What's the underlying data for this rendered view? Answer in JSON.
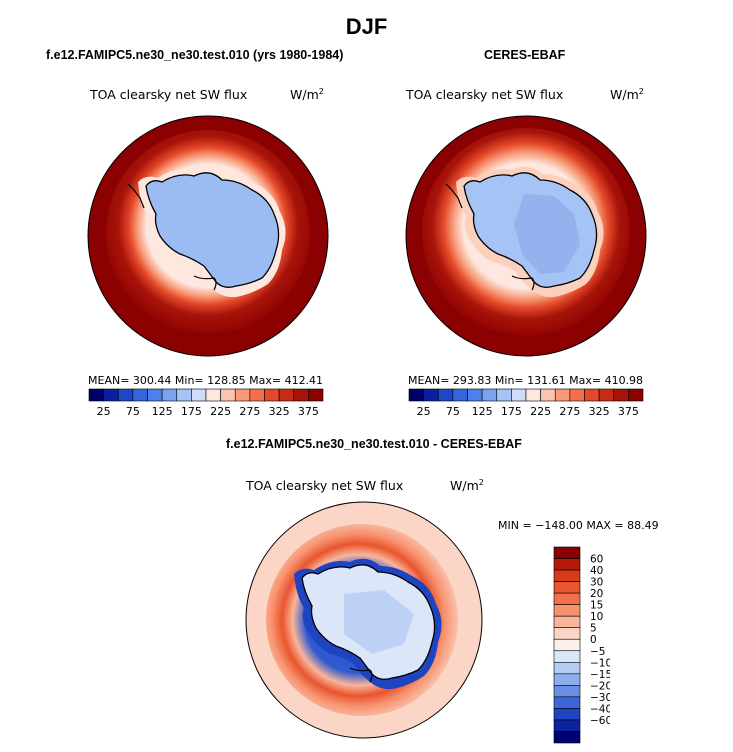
{
  "title": "DJF",
  "panels": [
    {
      "subtitle": "f.e12.FAMIPC5.ne30_ne30.test.010 (yrs 1980-1984)",
      "variable": "TOA clearsky net SW flux",
      "units": "W/m",
      "units_power": "2",
      "stats": "MEAN= 300.44   Min= 128.85   Max= 412.41"
    },
    {
      "subtitle": "CERES-EBAF",
      "variable": "TOA clearsky net SW flux",
      "units": "W/m",
      "units_power": "2",
      "stats": "MEAN= 293.83   Min= 131.61   Max= 410.98"
    },
    {
      "subtitle": "f.e12.FAMIPC5.ne30_ne30.test.010 - CERES-EBAF",
      "variable": "TOA clearsky net SW flux",
      "units": "W/m",
      "units_power": "2",
      "stats": "MIN = −148.00  MAX =   88.49"
    }
  ],
  "chart_data": [
    {
      "type": "heatmap",
      "projection": "south-polar-stereographic",
      "colorbar": {
        "orientation": "horizontal",
        "tick_labels": [
          "25",
          "75",
          "125",
          "175",
          "225",
          "275",
          "325",
          "375"
        ],
        "colors": [
          "#000064",
          "#0a1fa0",
          "#1d46c8",
          "#3366dd",
          "#4e80ea",
          "#7aa3f0",
          "#a6c3f5",
          "#cfdcf9",
          "#fde7de",
          "#fbc4ad",
          "#f89a78",
          "#f2704a",
          "#e44a2a",
          "#c82a14",
          "#a8140a",
          "#8b0000"
        ]
      },
      "antarctica_value_range": [
        128.85,
        175
      ],
      "ocean_max": 412.41,
      "mean": 300.44,
      "min": 128.85,
      "max": 412.41
    },
    {
      "type": "heatmap",
      "projection": "south-polar-stereographic",
      "colorbar": {
        "orientation": "horizontal",
        "tick_labels": [
          "25",
          "75",
          "125",
          "175",
          "225",
          "275",
          "325",
          "375"
        ],
        "colors": [
          "#000064",
          "#0a1fa0",
          "#1d46c8",
          "#3366dd",
          "#4e80ea",
          "#7aa3f0",
          "#a6c3f5",
          "#cfdcf9",
          "#fde7de",
          "#fbc4ad",
          "#f89a78",
          "#f2704a",
          "#e44a2a",
          "#c82a14",
          "#a8140a",
          "#8b0000"
        ]
      },
      "mean": 293.83,
      "min": 131.61,
      "max": 410.98
    },
    {
      "type": "heatmap",
      "projection": "south-polar-stereographic",
      "colorbar": {
        "orientation": "vertical",
        "tick_labels": [
          "60",
          "40",
          "30",
          "20",
          "15",
          "10",
          "5",
          "0",
          "−5",
          "−10",
          "−15",
          "−20",
          "−30",
          "−40",
          "−60"
        ],
        "colors": [
          "#8b0000",
          "#b31a0a",
          "#d63a1a",
          "#e8552e",
          "#f2714a",
          "#f7926e",
          "#f9b49a",
          "#fbd6c6",
          "#fdf0ea",
          "#dbe7f8",
          "#b5ccf2",
          "#8eaeec",
          "#6a8ee4",
          "#3f66d6",
          "#1f44bf",
          "#0a24a0",
          "#000070"
        ]
      },
      "min": -148.0,
      "max": 88.49
    }
  ]
}
